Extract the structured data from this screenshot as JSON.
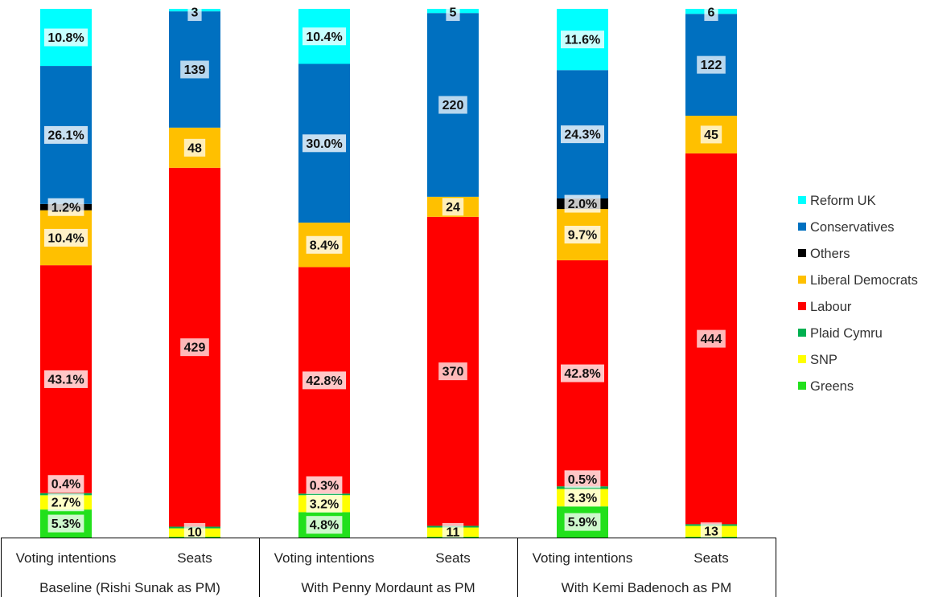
{
  "chart_data": {
    "type": "bar",
    "stacked": true,
    "legend_position": "right",
    "series": [
      {
        "name": "Greens",
        "color": "#22E01C"
      },
      {
        "name": "SNP",
        "color": "#FFFF00"
      },
      {
        "name": "Plaid Cymru",
        "color": "#00B050"
      },
      {
        "name": "Labour",
        "color": "#FF0000"
      },
      {
        "name": "Liberal Democrats",
        "color": "#FFC000"
      },
      {
        "name": "Others",
        "color": "#000000"
      },
      {
        "name": "Conservatives",
        "color": "#0070C0"
      },
      {
        "name": "Reform UK",
        "color": "#00FFFF"
      }
    ],
    "legend_order": [
      "Reform UK",
      "Conservatives",
      "Others",
      "Liberal Democrats",
      "Labour",
      "Plaid Cymru",
      "SNP",
      "Greens"
    ],
    "groups": [
      {
        "label": "Baseline (Rishi Sunak as PM)",
        "bars": [
          {
            "label": "Voting intentions",
            "unit": "%",
            "values": {
              "Greens": 5.3,
              "SNP": 2.7,
              "Plaid Cymru": 0.4,
              "Labour": 43.1,
              "Liberal Democrats": 10.4,
              "Others": 1.2,
              "Conservatives": 26.1,
              "Reform UK": 10.8
            },
            "labels": {
              "Greens": "5.3%",
              "SNP": "2.7%",
              "Plaid Cymru": "0.4%",
              "Labour": "43.1%",
              "Liberal Democrats": "10.4%",
              "Others": "1.2%",
              "Conservatives": "26.1%",
              "Reform UK": "10.8%"
            }
          },
          {
            "label": "Seats",
            "unit": "seats",
            "values": {
              "Greens": 1,
              "SNP": 10,
              "Plaid Cymru": 2,
              "Labour": 429,
              "Liberal Democrats": 48,
              "Others": 0,
              "Conservatives": 139,
              "Reform UK": 3
            },
            "labels": {
              "SNP": "10",
              "Labour": "429",
              "Liberal Democrats": "48",
              "Conservatives": "139",
              "Reform UK": "3"
            }
          }
        ]
      },
      {
        "label": "With Penny Mordaunt as PM",
        "bars": [
          {
            "label": "Voting intentions",
            "unit": "%",
            "values": {
              "Greens": 4.8,
              "SNP": 3.2,
              "Plaid Cymru": 0.3,
              "Labour": 42.8,
              "Liberal Democrats": 8.4,
              "Others": 0,
              "Conservatives": 30.0,
              "Reform UK": 10.4
            },
            "labels": {
              "Greens": "4.8%",
              "SNP": "3.2%",
              "Plaid Cymru": "0.3%",
              "Labour": "42.8%",
              "Liberal Democrats": "8.4%",
              "Conservatives": "30.0%",
              "Reform UK": "10.4%"
            }
          },
          {
            "label": "Seats",
            "unit": "seats",
            "values": {
              "Greens": 1,
              "SNP": 11,
              "Plaid Cymru": 2,
              "Labour": 370,
              "Liberal Democrats": 24,
              "Others": 0,
              "Conservatives": 220,
              "Reform UK": 5
            },
            "labels": {
              "SNP": "11",
              "Labour": "370",
              "Liberal Democrats": "24",
              "Conservatives": "220",
              "Reform UK": "5"
            }
          }
        ]
      },
      {
        "label": "With Kemi Badenoch as PM",
        "bars": [
          {
            "label": "Voting intentions",
            "unit": "%",
            "values": {
              "Greens": 5.9,
              "SNP": 3.3,
              "Plaid Cymru": 0.5,
              "Labour": 42.8,
              "Liberal Democrats": 9.7,
              "Others": 2.0,
              "Conservatives": 24.3,
              "Reform UK": 11.6
            },
            "labels": {
              "Greens": "5.9%",
              "SNP": "3.3%",
              "Plaid Cymru": "0.5%",
              "Labour": "42.8%",
              "Liberal Democrats": "9.7%",
              "Others": "2.0%",
              "Conservatives": "24.3%",
              "Reform UK": "11.6%"
            }
          },
          {
            "label": "Seats",
            "unit": "seats",
            "values": {
              "Greens": 1,
              "SNP": 13,
              "Plaid Cymru": 2,
              "Labour": 444,
              "Liberal Democrats": 45,
              "Others": 0,
              "Conservatives": 122,
              "Reform UK": 6
            },
            "labels": {
              "SNP": "13",
              "Labour": "444",
              "Liberal Democrats": "45",
              "Conservatives": "122",
              "Reform UK": "6"
            }
          }
        ]
      }
    ]
  }
}
